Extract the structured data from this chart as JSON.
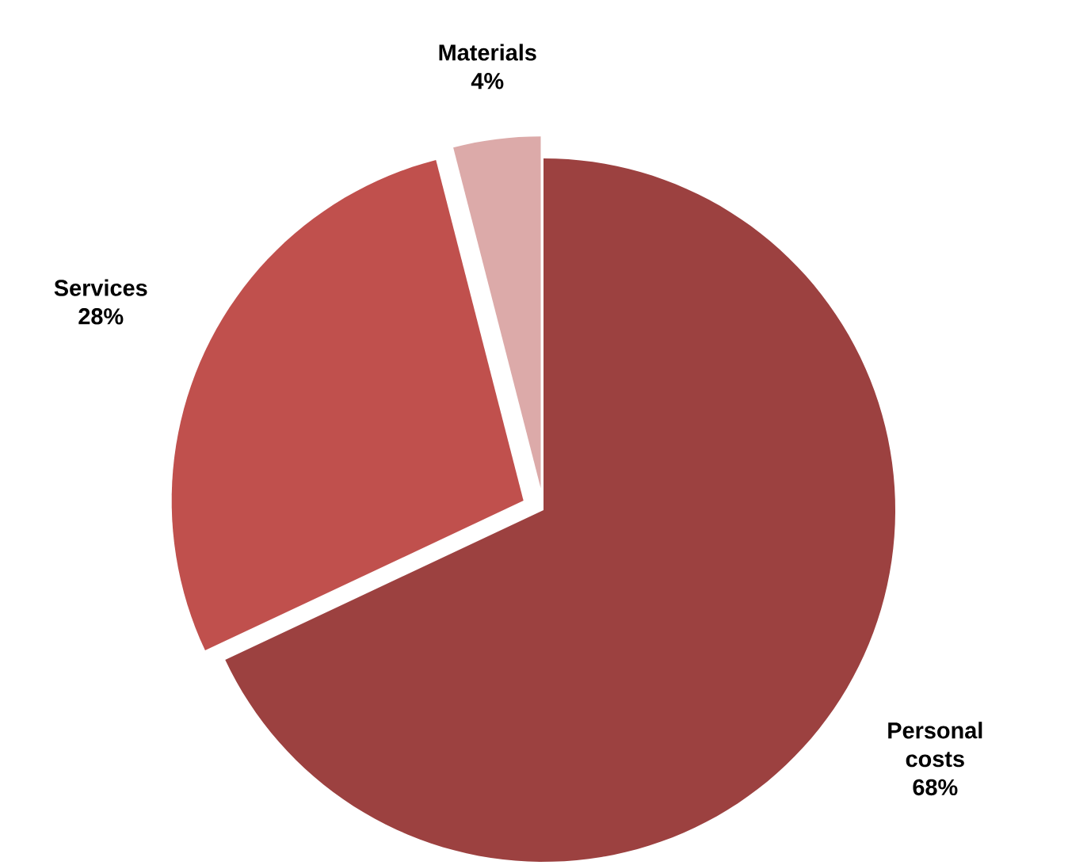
{
  "chart_data": {
    "type": "pie",
    "categories": [
      "Personal costs",
      "Services",
      "Materials"
    ],
    "values": [
      68,
      28,
      4
    ],
    "value_labels": [
      "68%",
      "28%",
      "4%"
    ],
    "colors": [
      "#9c4140",
      "#c0504d",
      "#dcaaa9"
    ]
  }
}
